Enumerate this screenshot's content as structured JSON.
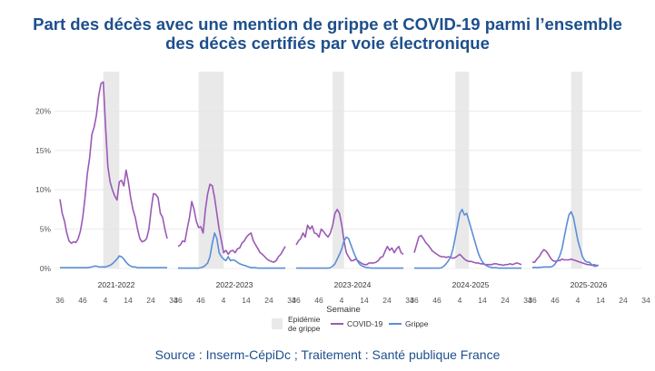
{
  "title_line1": "Part des décès avec une mention de grippe et COVID-19 parmi l’ensemble",
  "title_line2": "des décès certifiés par voie électronique",
  "source": "Source : Inserm-CépiDc ; Traitement : Santé publique France",
  "chart_data": {
    "type": "line",
    "xlabel": "Semaine",
    "ylabel": "",
    "ylim": [
      0,
      25
    ],
    "y_ticks": [
      0,
      5,
      10,
      15,
      20
    ],
    "y_tick_labels": [
      "0%",
      "5%",
      "10%",
      "15%",
      "20%"
    ],
    "week_tick_labels": [
      "36",
      "46",
      "4",
      "14",
      "24",
      "34"
    ],
    "seasons": [
      "2021-2022",
      "2022-2023",
      "2023-2024",
      "2024-2025",
      "2025-2026"
    ],
    "epidemic_periods": [
      {
        "season": "2021-2022",
        "start_index": 19,
        "end_index": 26
      },
      {
        "season": "2022-2023",
        "start_index": 9,
        "end_index": 20
      },
      {
        "season": "2023-2024",
        "start_index": 16,
        "end_index": 21
      },
      {
        "season": "2024-2025",
        "start_index": 18,
        "end_index": 24
      },
      {
        "season": "2025-2026",
        "start_index": 17,
        "end_index": 22
      }
    ],
    "legend": {
      "epidemic": "Epidémie\nde grippe",
      "covid": "COVID-19",
      "grippe": "Grippe"
    },
    "colors": {
      "covid": "#9b59b6",
      "grippe": "#5b8ed6",
      "epidemic": "#e9e9e9"
    },
    "series": [
      {
        "name": "COVID-19",
        "season": "2021-2022",
        "values": [
          8.8,
          7.0,
          6.0,
          4.5,
          3.5,
          3.2,
          3.4,
          3.3,
          3.8,
          4.8,
          6.5,
          9.0,
          12.0,
          14.0,
          17.0,
          18.0,
          19.5,
          22.0,
          23.5,
          23.7,
          18.0,
          13.0,
          11.0,
          10.0,
          9.2,
          8.7,
          11.0,
          11.2,
          10.5,
          12.5,
          11.0,
          9.0,
          7.5,
          6.5,
          5.0,
          3.8,
          3.4,
          3.5,
          3.8,
          5.0,
          7.5,
          9.5,
          9.4,
          9.0,
          7.0,
          6.5,
          5.0,
          3.8
        ]
      },
      {
        "name": "Grippe",
        "season": "2021-2022",
        "values": [
          0.1,
          0.1,
          0.1,
          0.1,
          0.1,
          0.1,
          0.1,
          0.1,
          0.1,
          0.1,
          0.1,
          0.1,
          0.1,
          0.15,
          0.2,
          0.3,
          0.3,
          0.2,
          0.2,
          0.2,
          0.2,
          0.3,
          0.4,
          0.6,
          0.9,
          1.2,
          1.6,
          1.5,
          1.2,
          0.8,
          0.5,
          0.3,
          0.2,
          0.2,
          0.1,
          0.1,
          0.1,
          0.1,
          0.1,
          0.1,
          0.1,
          0.1,
          0.1,
          0.1,
          0.1,
          0.1,
          0.1,
          0.1
        ]
      },
      {
        "name": "COVID-19",
        "season": "2022-2023",
        "values": [
          2.8,
          3.0,
          3.5,
          3.4,
          5.0,
          6.5,
          8.5,
          7.5,
          6.0,
          5.2,
          5.3,
          4.5,
          7.5,
          9.5,
          10.7,
          10.5,
          9.0,
          7.0,
          5.0,
          3.5,
          2.0,
          2.3,
          1.8,
          2.2,
          2.3,
          2.0,
          2.5,
          2.6,
          3.2,
          3.5,
          4.0,
          4.3,
          4.5,
          3.5,
          3.0,
          2.5,
          2.0,
          1.8,
          1.5,
          1.2,
          1.0,
          0.9,
          0.8,
          1.0,
          1.5,
          1.8,
          2.3,
          2.8
        ]
      },
      {
        "name": "Grippe",
        "season": "2022-2023",
        "values": [
          0.05,
          0.05,
          0.05,
          0.05,
          0.05,
          0.05,
          0.05,
          0.05,
          0.05,
          0.05,
          0.1,
          0.2,
          0.4,
          0.7,
          1.5,
          3.2,
          4.5,
          3.8,
          2.0,
          1.5,
          1.2,
          1.0,
          1.5,
          1.0,
          1.1,
          1.0,
          0.8,
          0.6,
          0.5,
          0.4,
          0.3,
          0.2,
          0.1,
          0.1,
          0.1,
          0.05,
          0.05,
          0.05,
          0.05,
          0.05,
          0.05,
          0.05,
          0.05,
          0.05,
          0.05,
          0.05,
          0.05,
          0.05
        ]
      },
      {
        "name": "COVID-19",
        "season": "2023-2024",
        "values": [
          3.0,
          3.5,
          3.8,
          4.5,
          4.0,
          5.5,
          5.0,
          5.4,
          4.5,
          4.4,
          4.0,
          5.0,
          4.7,
          4.3,
          4.0,
          4.5,
          5.5,
          7.0,
          7.5,
          7.0,
          5.5,
          3.5,
          2.0,
          1.5,
          1.0,
          1.0,
          1.2,
          1.0,
          0.8,
          0.6,
          0.5,
          0.5,
          0.7,
          0.7,
          0.7,
          0.8,
          1.0,
          1.4,
          1.5,
          2.2,
          2.8,
          2.3,
          2.6,
          2.0,
          2.5,
          2.8,
          2.0,
          1.8
        ]
      },
      {
        "name": "Grippe",
        "season": "2023-2024",
        "values": [
          0.05,
          0.05,
          0.05,
          0.05,
          0.05,
          0.05,
          0.05,
          0.05,
          0.05,
          0.05,
          0.05,
          0.05,
          0.05,
          0.05,
          0.05,
          0.1,
          0.3,
          0.6,
          1.2,
          1.8,
          2.5,
          3.5,
          4.0,
          3.8,
          3.0,
          2.2,
          1.5,
          0.9,
          0.5,
          0.3,
          0.2,
          0.1,
          0.1,
          0.05,
          0.05,
          0.05,
          0.05,
          0.05,
          0.05,
          0.05,
          0.05,
          0.05,
          0.05,
          0.05,
          0.05,
          0.05,
          0.05,
          0.05
        ]
      },
      {
        "name": "COVID-19",
        "season": "2024-2025",
        "values": [
          2.0,
          3.0,
          4.0,
          4.2,
          3.8,
          3.3,
          3.0,
          2.6,
          2.2,
          2.0,
          1.8,
          1.6,
          1.5,
          1.5,
          1.4,
          1.5,
          1.4,
          1.3,
          1.4,
          1.6,
          1.8,
          1.5,
          1.2,
          1.0,
          0.9,
          0.9,
          0.8,
          0.7,
          0.7,
          0.6,
          0.6,
          0.5,
          0.5,
          0.5,
          0.5,
          0.6,
          0.6,
          0.5,
          0.5,
          0.4,
          0.5,
          0.5,
          0.6,
          0.5,
          0.6,
          0.7,
          0.6,
          0.5
        ]
      },
      {
        "name": "Grippe",
        "season": "2024-2025",
        "values": [
          0.05,
          0.05,
          0.05,
          0.05,
          0.05,
          0.05,
          0.05,
          0.05,
          0.05,
          0.05,
          0.05,
          0.05,
          0.1,
          0.3,
          0.6,
          1.0,
          1.5,
          2.5,
          4.0,
          5.5,
          7.0,
          7.5,
          6.8,
          7.0,
          6.0,
          5.0,
          4.0,
          3.0,
          2.0,
          1.3,
          0.8,
          0.5,
          0.3,
          0.2,
          0.1,
          0.1,
          0.1,
          0.05,
          0.05,
          0.05,
          0.05,
          0.05,
          0.05,
          0.05,
          0.05,
          0.05,
          0.05,
          0.05
        ]
      },
      {
        "name": "COVID-19",
        "season": "2025-2026",
        "values": [
          0.8,
          0.8,
          1.2,
          1.5,
          2.0,
          2.4,
          2.2,
          1.8,
          1.3,
          1.0,
          0.9,
          1.0,
          1.0,
          1.2,
          1.1,
          1.1,
          1.1,
          1.2,
          1.1,
          1.0,
          0.9,
          0.8,
          0.7,
          0.6,
          0.5,
          0.5,
          0.4,
          0.5,
          0.4,
          0.4
        ]
      },
      {
        "name": "Grippe",
        "season": "2025-2026",
        "values": [
          0.1,
          0.15,
          0.1,
          0.15,
          0.15,
          0.2,
          0.2,
          0.2,
          0.2,
          0.3,
          0.6,
          1.0,
          1.6,
          2.5,
          4.0,
          5.5,
          6.8,
          7.2,
          6.5,
          5.0,
          3.5,
          2.5,
          1.5,
          1.0,
          0.8,
          0.8,
          0.5,
          0.3,
          0.3,
          0.4
        ]
      }
    ]
  }
}
